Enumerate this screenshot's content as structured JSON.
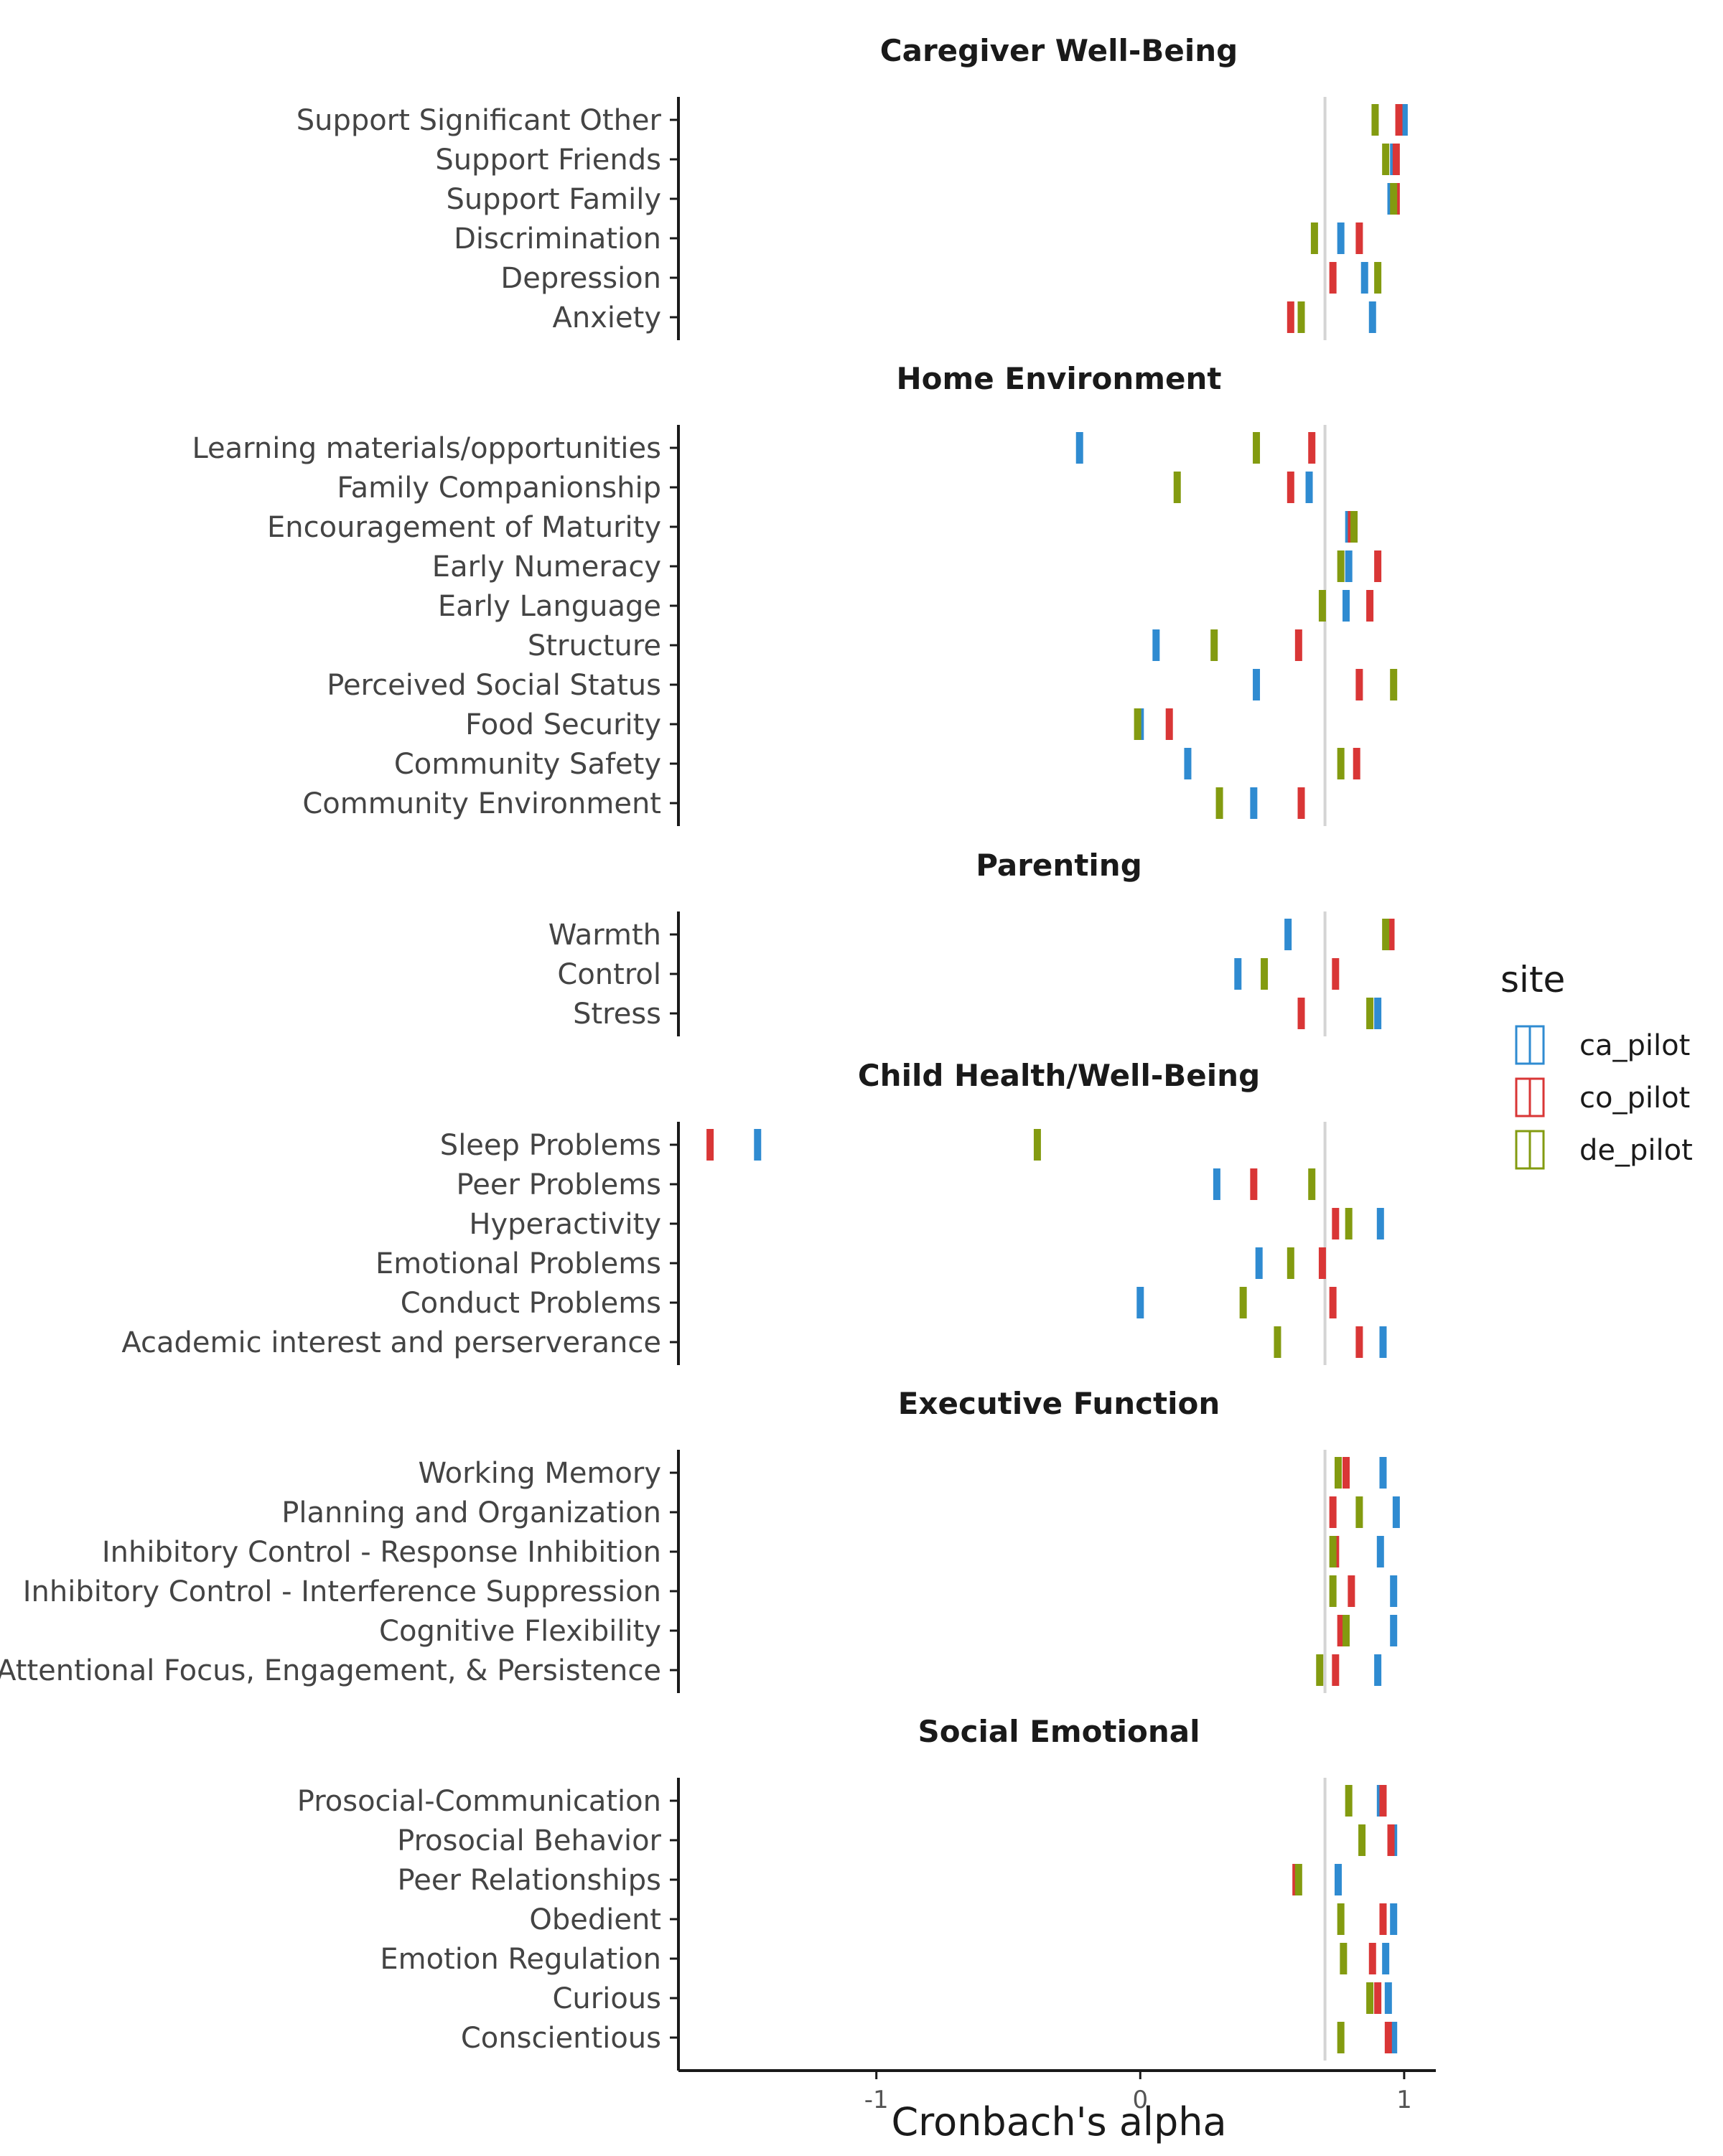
{
  "chart_data": {
    "type": "scatter",
    "xlabel": "Cronbach's alpha",
    "ylabel": "",
    "xlim": [
      -1.75,
      1.12
    ],
    "xticks": [
      -1,
      0,
      1
    ],
    "xtick_labels": [
      "-1",
      "0",
      "1"
    ],
    "reference_line_x": 0.7,
    "legend": {
      "title": "site",
      "position": "right",
      "entries": [
        "ca_pilot",
        "co_pilot",
        "de_pilot"
      ]
    },
    "colors": {
      "ca_pilot": "#2f8bd1",
      "co_pilot": "#d93636",
      "de_pilot": "#839b10",
      "reference": "#d4d4d4",
      "axis": "#1a1a1a"
    },
    "series": [
      {
        "name": "ca_pilot",
        "color": "#2f8bd1"
      },
      {
        "name": "co_pilot",
        "color": "#d93636"
      },
      {
        "name": "de_pilot",
        "color": "#839b10"
      }
    ],
    "facets": [
      {
        "title": "Caregiver Well-Being",
        "rows": [
          {
            "label": "Support Significant Other",
            "ca_pilot": 1.0,
            "co_pilot": 0.98,
            "de_pilot": 0.89
          },
          {
            "label": "Support Friends",
            "ca_pilot": 0.96,
            "co_pilot": 0.97,
            "de_pilot": 0.93
          },
          {
            "label": "Support Family",
            "ca_pilot": 0.95,
            "co_pilot": 0.97,
            "de_pilot": 0.96
          },
          {
            "label": "Discrimination",
            "ca_pilot": 0.76,
            "co_pilot": 0.83,
            "de_pilot": 0.66
          },
          {
            "label": "Depression",
            "ca_pilot": 0.85,
            "co_pilot": 0.73,
            "de_pilot": 0.9
          },
          {
            "label": "Anxiety",
            "ca_pilot": 0.88,
            "co_pilot": 0.57,
            "de_pilot": 0.61
          }
        ]
      },
      {
        "title": "Home Environment",
        "rows": [
          {
            "label": "Learning materials/opportunities",
            "ca_pilot": -0.23,
            "co_pilot": 0.65,
            "de_pilot": 0.44
          },
          {
            "label": "Family Companionship",
            "ca_pilot": 0.64,
            "co_pilot": 0.57,
            "de_pilot": 0.14
          },
          {
            "label": "Encouragement of Maturity",
            "ca_pilot": 0.79,
            "co_pilot": 0.8,
            "de_pilot": 0.81
          },
          {
            "label": "Early Numeracy",
            "ca_pilot": 0.79,
            "co_pilot": 0.9,
            "de_pilot": 0.76
          },
          {
            "label": "Early Language",
            "ca_pilot": 0.78,
            "co_pilot": 0.87,
            "de_pilot": 0.69
          },
          {
            "label": "Structure",
            "ca_pilot": 0.06,
            "co_pilot": 0.6,
            "de_pilot": 0.28
          },
          {
            "label": "Perceived Social Status",
            "ca_pilot": 0.44,
            "co_pilot": 0.83,
            "de_pilot": 0.96
          },
          {
            "label": "Food Security",
            "ca_pilot": 0.0,
            "co_pilot": 0.11,
            "de_pilot": -0.01
          },
          {
            "label": "Community Safety",
            "ca_pilot": 0.18,
            "co_pilot": 0.82,
            "de_pilot": 0.76
          },
          {
            "label": "Community Environment",
            "ca_pilot": 0.43,
            "co_pilot": 0.61,
            "de_pilot": 0.3
          }
        ]
      },
      {
        "title": "Parenting",
        "rows": [
          {
            "label": "Warmth",
            "ca_pilot": 0.56,
            "co_pilot": 0.95,
            "de_pilot": 0.93
          },
          {
            "label": "Control",
            "ca_pilot": 0.37,
            "co_pilot": 0.74,
            "de_pilot": 0.47
          },
          {
            "label": "Stress",
            "ca_pilot": 0.9,
            "co_pilot": 0.61,
            "de_pilot": 0.87
          }
        ]
      },
      {
        "title": "Child Health/Well-Being",
        "rows": [
          {
            "label": "Sleep Problems",
            "ca_pilot": -1.45,
            "co_pilot": -1.63,
            "de_pilot": -0.39
          },
          {
            "label": "Peer Problems",
            "ca_pilot": 0.29,
            "co_pilot": 0.43,
            "de_pilot": 0.65
          },
          {
            "label": "Hyperactivity",
            "ca_pilot": 0.91,
            "co_pilot": 0.74,
            "de_pilot": 0.79
          },
          {
            "label": "Emotional Problems",
            "ca_pilot": 0.45,
            "co_pilot": 0.69,
            "de_pilot": 0.57
          },
          {
            "label": "Conduct Problems",
            "ca_pilot": 0.0,
            "co_pilot": 0.73,
            "de_pilot": 0.39
          },
          {
            "label": "Academic interest and perserverance",
            "ca_pilot": 0.92,
            "co_pilot": 0.83,
            "de_pilot": 0.52
          }
        ]
      },
      {
        "title": "Executive Function",
        "rows": [
          {
            "label": "Working Memory",
            "ca_pilot": 0.92,
            "co_pilot": 0.78,
            "de_pilot": 0.75
          },
          {
            "label": "Planning and Organization",
            "ca_pilot": 0.97,
            "co_pilot": 0.73,
            "de_pilot": 0.83
          },
          {
            "label": "Inhibitory Control - Response Inhibition",
            "ca_pilot": 0.91,
            "co_pilot": 0.74,
            "de_pilot": 0.73
          },
          {
            "label": "Inhibitory Control - Interference Suppression",
            "ca_pilot": 0.96,
            "co_pilot": 0.8,
            "de_pilot": 0.73
          },
          {
            "label": "Cognitive Flexibility",
            "ca_pilot": 0.96,
            "co_pilot": 0.76,
            "de_pilot": 0.78
          },
          {
            "label": "Attentional Focus, Engagement, & Persistence",
            "ca_pilot": 0.9,
            "co_pilot": 0.74,
            "de_pilot": 0.68
          }
        ]
      },
      {
        "title": "Social Emotional",
        "rows": [
          {
            "label": "Prosocial-Communication",
            "ca_pilot": 0.91,
            "co_pilot": 0.92,
            "de_pilot": 0.79
          },
          {
            "label": "Prosocial Behavior",
            "ca_pilot": 0.96,
            "co_pilot": 0.95,
            "de_pilot": 0.84
          },
          {
            "label": "Peer Relationships",
            "ca_pilot": 0.75,
            "co_pilot": 0.59,
            "de_pilot": 0.6
          },
          {
            "label": "Obedient",
            "ca_pilot": 0.96,
            "co_pilot": 0.92,
            "de_pilot": 0.76
          },
          {
            "label": "Emotion Regulation",
            "ca_pilot": 0.93,
            "co_pilot": 0.88,
            "de_pilot": 0.77
          },
          {
            "label": "Curious",
            "ca_pilot": 0.94,
            "co_pilot": 0.9,
            "de_pilot": 0.87
          },
          {
            "label": "Conscientious",
            "ca_pilot": 0.96,
            "co_pilot": 0.94,
            "de_pilot": 0.76
          }
        ]
      }
    ]
  }
}
